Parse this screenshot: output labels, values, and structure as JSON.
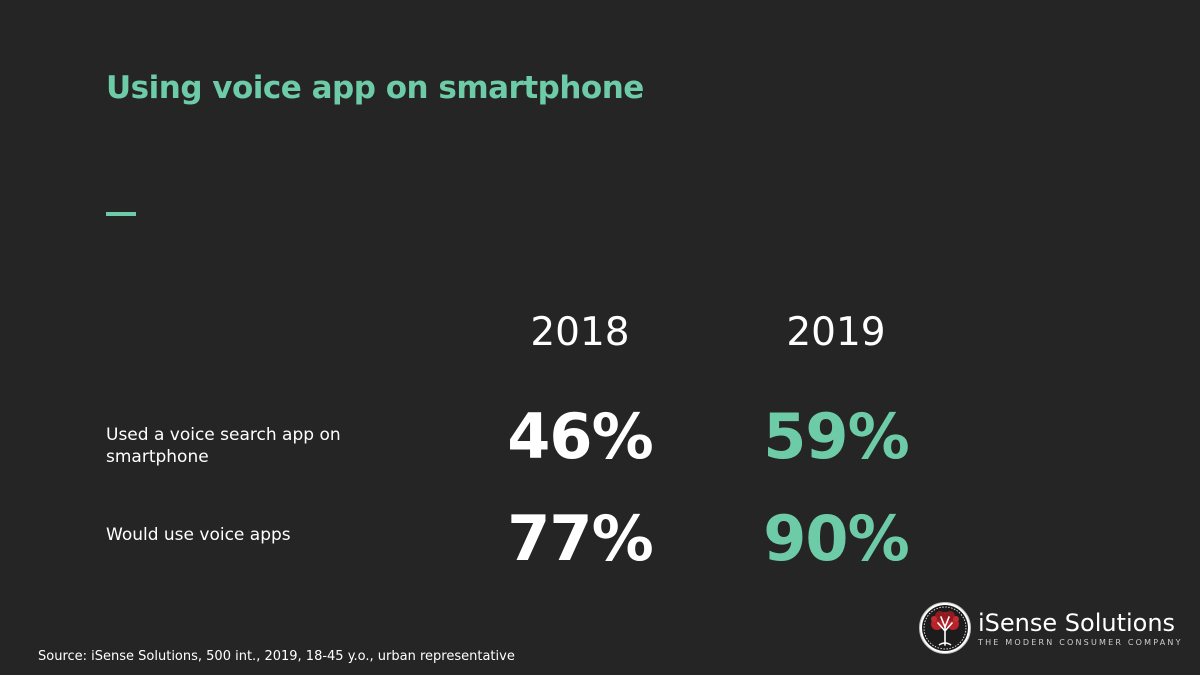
{
  "slide": {
    "title": "Using voice app on smartphone",
    "colors": {
      "background": "#252525",
      "accent": "#6dcca7",
      "text": "#ffffff"
    }
  },
  "table": {
    "years": [
      "2018",
      "2019"
    ],
    "rows": [
      {
        "label": "Used a voice search app on smartphone",
        "values": [
          "46%",
          "59%"
        ]
      },
      {
        "label": "Would use voice apps",
        "values": [
          "77%",
          "90%"
        ]
      }
    ]
  },
  "footer": {
    "source": "Source: iSense Solutions, 500  int., 2019, 18-45 y.o., urban representative"
  },
  "logo": {
    "name": "iSense Solutions",
    "tagline": "THE MODERN CONSUMER COMPANY",
    "icon": "tree-logo-icon"
  }
}
